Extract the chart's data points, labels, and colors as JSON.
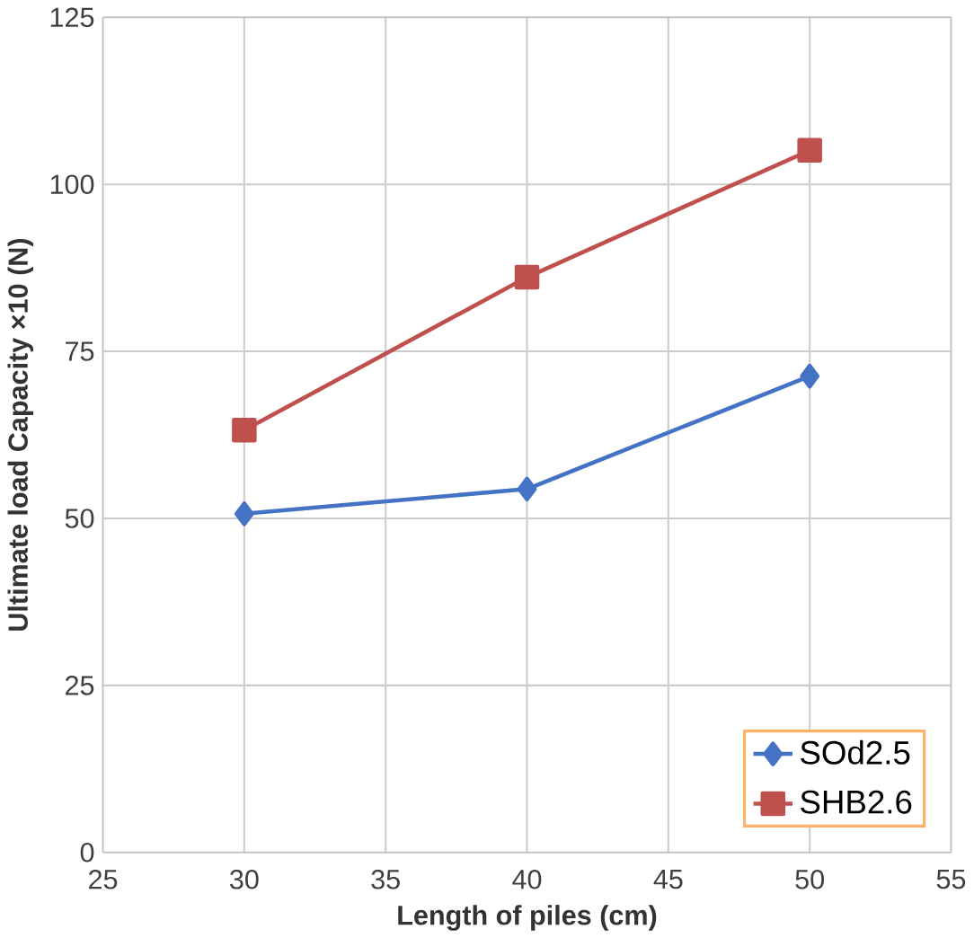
{
  "chart_data": {
    "type": "line",
    "xlabel": "Length of piles (cm)",
    "ylabel": "Ultimate load Capacity ×10 (N)",
    "x": [
      30,
      40,
      50
    ],
    "series": [
      {
        "name": "SOd2.5",
        "color": "#4472c4",
        "marker": "diamond",
        "values": [
          50.7,
          54.4,
          71.3
        ]
      },
      {
        "name": "SHB2.6",
        "color": "#c0504d",
        "marker": "square",
        "values": [
          63.2,
          86.1,
          105.1
        ]
      }
    ],
    "xlim": [
      25,
      55
    ],
    "xticks": [
      25,
      30,
      35,
      40,
      45,
      50,
      55
    ],
    "ylim": [
      0,
      125
    ],
    "yticks": [
      0,
      25,
      50,
      75,
      100,
      125
    ],
    "grid": true,
    "legend": "bottom right",
    "line_style": "solid"
  }
}
